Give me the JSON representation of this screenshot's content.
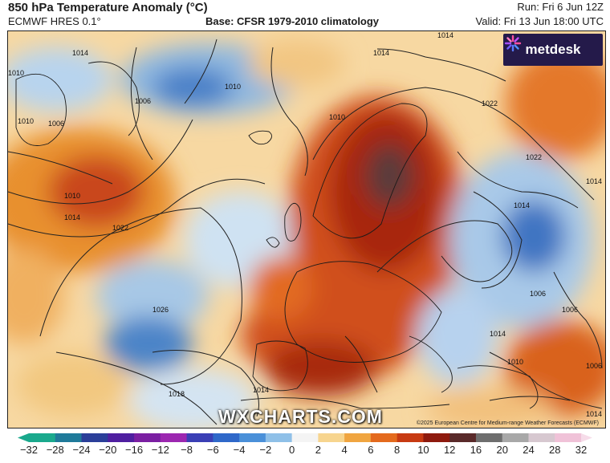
{
  "header": {
    "title": "850 hPa Temperature Anomaly (°C)",
    "model": "ECMWF HRES 0.1°",
    "base": "Base: CFSR 1979-2010 climatology",
    "run": "Run: Fri 6 Jun 12Z",
    "valid": "Valid: Fri 13 Jun 18:00 UTC"
  },
  "logo": {
    "text": "metdesk",
    "icon": "metdesk-star-icon"
  },
  "watermark": "WXCHARTS.COM",
  "copyright": "©2025 European Centre for Medium-range Weather Forecasts (ECMWF)",
  "isobar_labels": [
    "1014",
    "1014",
    "1010",
    "1010",
    "1006",
    "1006",
    "1010",
    "1014",
    "1022",
    "1010",
    "1022",
    "1022",
    "1014",
    "1014",
    "1014",
    "1014",
    "1026",
    "1018",
    "1014",
    "1010",
    "1006",
    "1006",
    "1010",
    "1014",
    "1006"
  ],
  "colorbar": {
    "ticks": [
      "−32",
      "−28",
      "−24",
      "−20",
      "−16",
      "−12",
      "−8",
      "−6",
      "−4",
      "−2",
      "0",
      "2",
      "4",
      "6",
      "8",
      "10",
      "12",
      "16",
      "20",
      "24",
      "28",
      "32"
    ],
    "colors": [
      "#1aa98d",
      "#1f7a9a",
      "#2b3f99",
      "#4f1fa0",
      "#7b1fa2",
      "#9c27b0",
      "#3a3fb5",
      "#2f68c9",
      "#4a90d9",
      "#8fc0e8",
      "#f4f4f4",
      "#f7d58f",
      "#f0a540",
      "#e46a1d",
      "#c73a12",
      "#8e1a0e",
      "#5a2a2a",
      "#6e6e6e",
      "#a8a8a8",
      "#d7c8d0",
      "#f0c2d8"
    ]
  }
}
